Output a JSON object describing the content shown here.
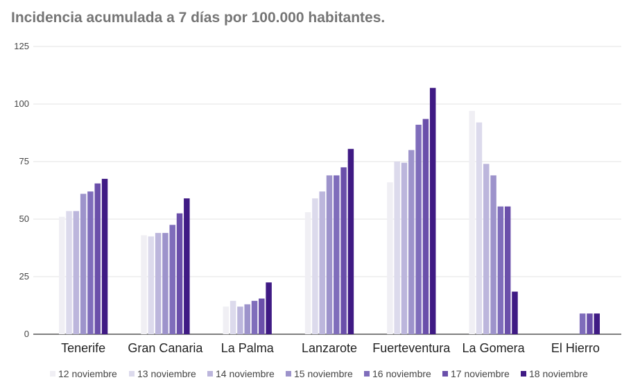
{
  "chart_data": {
    "type": "bar",
    "title": "Incidencia acumulada a 7 días por 100.000 habitantes.",
    "xlabel": "",
    "ylabel": "",
    "ylim": [
      0,
      125
    ],
    "yticks": [
      0,
      25,
      50,
      75,
      100,
      125
    ],
    "grid": true,
    "legend_position": "bottom",
    "categories": [
      "Tenerife",
      "Gran Canaria",
      "La Palma",
      "Lanzarote",
      "Fuerteventura",
      "La Gomera",
      "El Hierro"
    ],
    "series": [
      {
        "name": "12 noviembre",
        "color": "#f0eff4",
        "values": [
          51,
          43,
          12,
          53,
          66,
          97,
          0
        ]
      },
      {
        "name": "13 noviembre",
        "color": "#dcdaec",
        "values": [
          53.5,
          42.5,
          14.5,
          59,
          75,
          92,
          0
        ]
      },
      {
        "name": "14 noviembre",
        "color": "#bcb6dc",
        "values": [
          53.5,
          44,
          12,
          62,
          74.5,
          74,
          0
        ]
      },
      {
        "name": "15 noviembre",
        "color": "#9d93cb",
        "values": [
          61,
          44,
          13,
          69,
          80,
          69,
          0
        ]
      },
      {
        "name": "16 noviembre",
        "color": "#7f6dbb",
        "values": [
          62,
          47.5,
          14.5,
          69,
          91,
          55.5,
          9
        ]
      },
      {
        "name": "17 noviembre",
        "color": "#6a4faa",
        "values": [
          65.5,
          52.5,
          15.5,
          72.5,
          93.5,
          55.5,
          9
        ]
      },
      {
        "name": "18 noviembre",
        "color": "#3f1a84",
        "values": [
          67.5,
          59,
          22.5,
          80.5,
          107,
          18.5,
          9
        ]
      }
    ]
  }
}
